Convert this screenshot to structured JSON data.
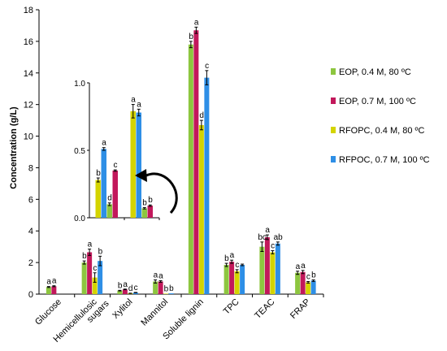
{
  "chart_data": {
    "type": "bar",
    "ylabel": "Concentration (g/L)",
    "ylim": [
      0,
      18
    ],
    "yticks": [
      "0",
      "2",
      "4",
      "6",
      "8",
      "10",
      "12",
      "14",
      "16",
      "18"
    ],
    "categories": [
      [
        "Glucose"
      ],
      [
        "Hemicellulosic",
        "sugars"
      ],
      [
        "Xylitol"
      ],
      [
        "Mannitol"
      ],
      [
        "Soluble lignin"
      ],
      [
        "TPC"
      ],
      [
        "TEAC"
      ],
      [
        "FRAP"
      ]
    ],
    "series": [
      {
        "name": "EOP, 0.4 M, 80 ºC",
        "color": "#8DC63F",
        "values": [
          0.45,
          2.0,
          0.22,
          0.8,
          15.8,
          1.85,
          3.0,
          1.35
        ],
        "errors": [
          0.03,
          0.1,
          0.02,
          0.1,
          0.2,
          0.1,
          0.3,
          0.1
        ],
        "labels": [
          "a",
          "b",
          "b",
          "a",
          "b",
          "b",
          "bc",
          "a"
        ]
      },
      {
        "name": "EOP, 0.7 M, 100 ºC",
        "color": "#C2185B",
        "values": [
          0.5,
          2.65,
          0.3,
          0.8,
          16.7,
          2.05,
          3.6,
          1.4
        ],
        "errors": [
          0.03,
          0.2,
          0.02,
          0.05,
          0.2,
          0.1,
          0.15,
          0.1
        ],
        "labels": [
          "a",
          "a",
          "a",
          "a",
          "a",
          "a",
          "a",
          "a"
        ]
      },
      {
        "name": "RFOPC, 0.4 M, 80 ºC",
        "color": "#D4D400",
        "values": [
          0,
          1.05,
          0.05,
          0.03,
          10.7,
          1.45,
          2.65,
          0.75
        ],
        "errors": [
          0,
          0.3,
          0.01,
          0,
          0.3,
          0.1,
          0.1,
          0.05
        ],
        "labels": [
          "",
          "c",
          "d",
          "b",
          "d",
          "c",
          "c",
          "c"
        ]
      },
      {
        "name": "RFPOC, 0.7 M, 100 ºC",
        "color": "#2E8FE6",
        "values": [
          0,
          2.1,
          0.1,
          0.05,
          13.7,
          1.85,
          3.2,
          0.85
        ],
        "errors": [
          0,
          0.3,
          0.01,
          0,
          0.45,
          0.05,
          0.1,
          0.05
        ],
        "labels": [
          "",
          "b",
          "c",
          "b",
          "c",
          "",
          "ab",
          "b"
        ]
      }
    ],
    "inset": {
      "ylim": [
        0,
        1.0
      ],
      "yticks": [
        "0.0",
        "0.5",
        "1.0"
      ],
      "groups": [
        {
          "bars": [
            {
              "series": 2,
              "value": 0.28,
              "error": 0.015,
              "label": "b"
            },
            {
              "series": 3,
              "value": 0.51,
              "error": 0.01,
              "label": "a"
            },
            {
              "series": 0,
              "value": 0.1,
              "error": 0.01,
              "label": "d"
            },
            {
              "series": 1,
              "value": 0.35,
              "error": 0.005,
              "label": "c"
            }
          ]
        },
        {
          "bars": [
            {
              "series": 2,
              "value": 0.79,
              "error": 0.05,
              "label": "a"
            },
            {
              "series": 3,
              "value": 0.78,
              "error": 0.025,
              "label": "a"
            },
            {
              "series": 0,
              "value": 0.07,
              "error": 0.005,
              "label": "b"
            },
            {
              "series": 1,
              "value": 0.09,
              "error": 0.005,
              "label": "b"
            }
          ]
        }
      ]
    },
    "legend_position": "right"
  }
}
